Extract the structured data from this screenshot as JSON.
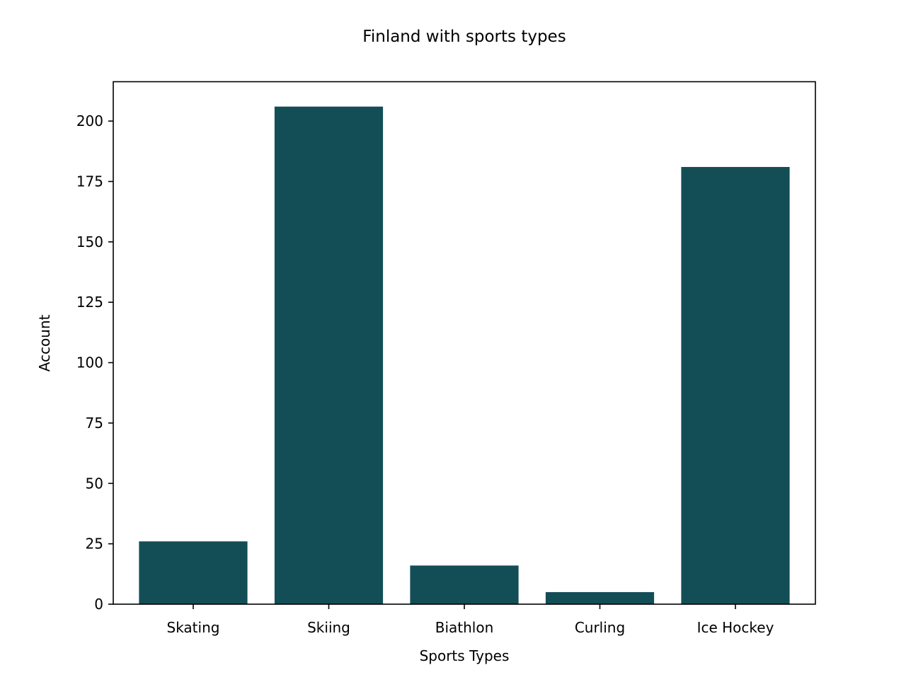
{
  "chart_data": {
    "type": "bar",
    "title": "Finland with sports types",
    "xlabel": "Sports Types",
    "ylabel": "Account",
    "categories": [
      "Skating",
      "Skiing",
      "Biathlon",
      "Curling",
      "Ice Hockey"
    ],
    "values": [
      26,
      206,
      16,
      5,
      181
    ],
    "ylim": [
      0,
      216.3
    ],
    "yticks": [
      "0",
      "25",
      "50",
      "75",
      "100",
      "125",
      "150",
      "175",
      "200"
    ],
    "bar_color": "#134e57",
    "grid": false,
    "legend": "none"
  }
}
